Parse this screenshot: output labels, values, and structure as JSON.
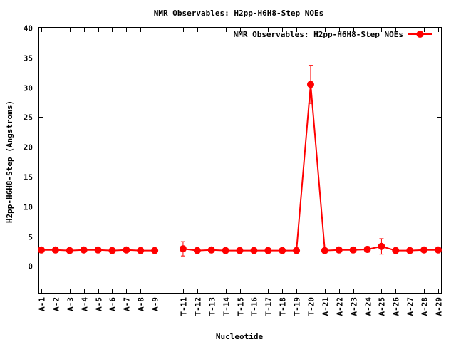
{
  "chart_data": {
    "type": "line",
    "title": "NMR Observables: H2pp-H6H8-Step NOEs",
    "xlabel": "Nucleotide",
    "ylabel": "H2pp-H6H8-Step (Angstroms)",
    "ylim": [
      -4.5,
      40
    ],
    "yticks": [
      0,
      5,
      10,
      15,
      20,
      25,
      30,
      35,
      40
    ],
    "grid": false,
    "legend_position": "top-right",
    "line_color": "#ff0000",
    "categories": [
      "A-1",
      "A-2",
      "A-3",
      "A-4",
      "A-5",
      "A-6",
      "A-7",
      "A-8",
      "A-9",
      "",
      "T-11",
      "T-12",
      "T-13",
      "T-14",
      "T-15",
      "T-16",
      "T-17",
      "T-18",
      "T-19",
      "T-20",
      "A-21",
      "A-22",
      "A-23",
      "A-24",
      "A-25",
      "A-26",
      "A-27",
      "A-28",
      "A-29"
    ],
    "series": [
      {
        "name": "NMR Observables: H2pp-H6H8-Step NOEs",
        "segments": [
          {
            "start_index": 0,
            "values": [
              2.7,
              2.7,
              2.6,
              2.7,
              2.7,
              2.6,
              2.7,
              2.6,
              2.6
            ],
            "errors": [
              0.1,
              0.1,
              0.1,
              0.1,
              0.1,
              0.1,
              0.1,
              0.1,
              0.1
            ]
          },
          {
            "start_index": 10,
            "values": [
              2.9,
              2.6,
              2.7,
              2.6,
              2.6,
              2.6,
              2.6,
              2.6,
              2.6,
              30.5,
              2.6,
              2.7,
              2.7,
              2.8,
              3.3,
              2.6,
              2.6,
              2.7,
              2.7
            ],
            "errors": [
              1.2,
              0.1,
              0.1,
              0.1,
              0.1,
              0.1,
              0.1,
              0.1,
              0.1,
              3.2,
              0.1,
              0.1,
              0.1,
              0.5,
              1.3,
              0.1,
              0.1,
              0.1,
              0.1
            ]
          }
        ]
      }
    ]
  }
}
